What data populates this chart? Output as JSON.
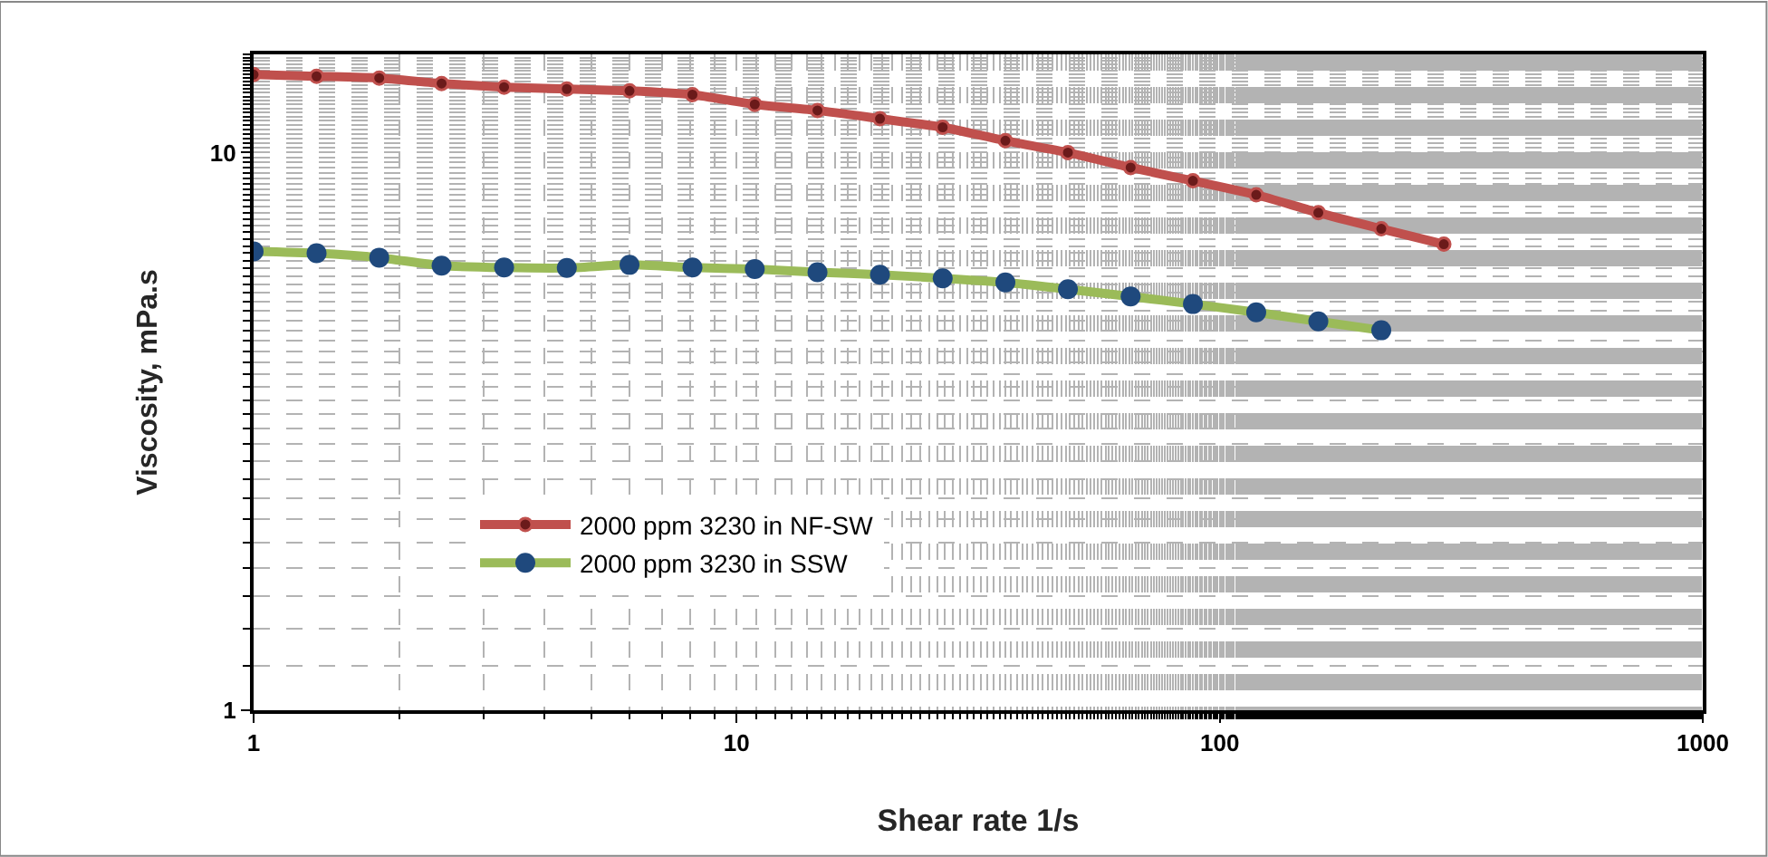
{
  "chart_data": {
    "type": "line",
    "xlabel": "Shear rate 1/s",
    "ylabel": "Viscosity, mPa.s",
    "log": "xy",
    "grid": true,
    "legend": "bottom left",
    "marker": "circle",
    "line_style": "solid",
    "xlim": [
      1,
      1000
    ],
    "xticks": [
      1,
      10,
      100,
      1000
    ],
    "ylim": [
      1,
      15
    ],
    "yticks": [
      1,
      10
    ],
    "series": [
      {
        "name": "2000 ppm 3230 in NF-SW",
        "color": "#c0504d",
        "x": [
          1,
          1.35,
          1.82,
          2.45,
          3.3,
          4.45,
          6,
          8.1,
          10.9,
          14.7,
          19.8,
          26.7,
          36,
          48.5,
          65.4,
          88,
          119,
          160,
          216,
          291
        ],
        "values": [
          13.8,
          13.7,
          13.6,
          13.3,
          13.1,
          13.0,
          12.9,
          12.7,
          12.2,
          11.9,
          11.5,
          11.1,
          10.5,
          10.0,
          9.4,
          8.9,
          8.4,
          7.8,
          7.3,
          6.85
        ]
      },
      {
        "name": "2000 ppm 3230 in SSW",
        "color": "#9bbb59",
        "x": [
          1,
          1.35,
          1.82,
          2.45,
          3.3,
          4.45,
          6,
          8.1,
          10.9,
          14.7,
          19.8,
          26.7,
          36,
          48.5,
          65.4,
          88,
          119,
          160,
          216
        ],
        "values": [
          6.65,
          6.6,
          6.48,
          6.27,
          6.22,
          6.21,
          6.29,
          6.22,
          6.18,
          6.1,
          6.04,
          5.95,
          5.85,
          5.69,
          5.52,
          5.35,
          5.17,
          4.98,
          4.8
        ]
      }
    ]
  }
}
